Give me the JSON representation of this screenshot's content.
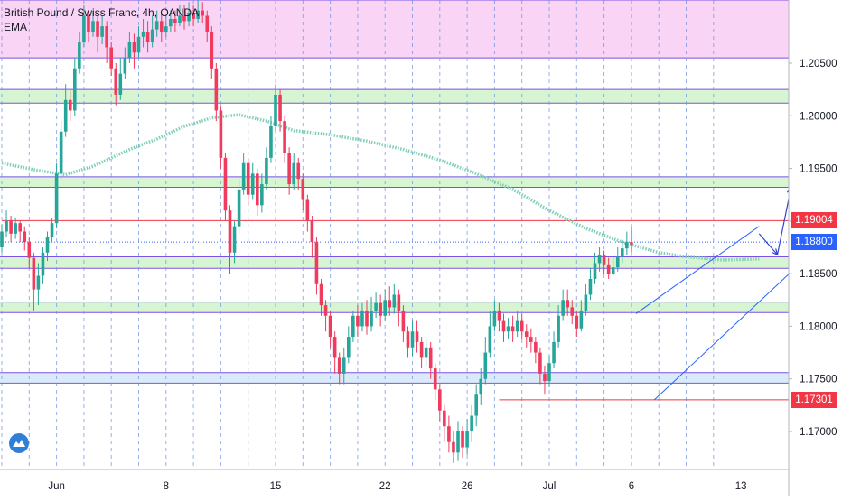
{
  "header": {
    "symbol_line": "British Pound / Swiss Franc, 4h, OANDA",
    "indicator": "EMA"
  },
  "price_badges": [
    {
      "label": "1.19004",
      "value": 1.19004,
      "color": "#f23645"
    },
    {
      "label": "1.18800",
      "value": 1.188,
      "color": "#2962ff"
    },
    {
      "label": "1.17301",
      "value": 1.17301,
      "color": "#f23645"
    }
  ],
  "colors": {
    "up_candle": "#26a69a",
    "down_candle": "#ef3b5e",
    "ema": "#7fcfb8",
    "support_zone": "#c9f2c4",
    "upper_zone": "#f7c6f2",
    "zone_border": "#7b52e8",
    "red_level": "#f23645",
    "channel": "#2962ff",
    "grid": "#6b8fe0"
  },
  "chart_data": {
    "type": "candlestick",
    "title": "British Pound / Swiss Franc, 4h, OANDA",
    "y_axis": {
      "range": [
        1.1664,
        1.211
      ],
      "ticks": [
        1.205,
        1.2,
        1.195,
        1.19,
        1.185,
        1.18,
        1.175,
        1.17
      ],
      "tick_labels": [
        "1.20500",
        "1.20000",
        "1.19500",
        "1.19000",
        "1.18500",
        "1.18000",
        "1.17500",
        "1.17000"
      ]
    },
    "x_axis": {
      "tick_labels": [
        "Jun",
        "8",
        "15",
        "22",
        "26",
        "Jul",
        "6",
        "13"
      ],
      "tick_candle_index": [
        12,
        36,
        60,
        84,
        102,
        120,
        138,
        162
      ]
    },
    "horizontal_zones": [
      {
        "from": 1.2055,
        "to": 1.211,
        "color": "pink"
      },
      {
        "from": 1.2012,
        "to": 1.2025,
        "color": "green"
      },
      {
        "from": 1.1932,
        "to": 1.1942,
        "color": "green"
      },
      {
        "from": 1.1855,
        "to": 1.1866,
        "color": "green"
      },
      {
        "from": 1.1813,
        "to": 1.1823,
        "color": "green"
      },
      {
        "from": 1.1746,
        "to": 1.1756,
        "color": "blue"
      }
    ],
    "red_levels": [
      {
        "value": 1.19004,
        "from_index": 0
      },
      {
        "value": 1.17301,
        "from_index": 109
      }
    ],
    "last_price_line": 1.188,
    "channel": {
      "lower": [
        [
          143,
          1.173
        ],
        [
          180,
          1.188
        ]
      ],
      "upper": [
        [
          139,
          1.1812
        ],
        [
          166,
          1.1895
        ]
      ]
    },
    "projection_arrows": [
      {
        "from": [
          166,
          1.1888
        ],
        "to": [
          170,
          1.1868
        ]
      },
      {
        "from": [
          170,
          1.1868
        ],
        "to": [
          173,
          1.1932
        ]
      }
    ],
    "ema": [
      [
        0,
        1.1955
      ],
      [
        8,
        1.1948
      ],
      [
        14,
        1.1944
      ],
      [
        20,
        1.1952
      ],
      [
        28,
        1.1968
      ],
      [
        34,
        1.1978
      ],
      [
        40,
        1.199
      ],
      [
        46,
        1.1998
      ],
      [
        52,
        1.2001
      ],
      [
        58,
        1.1995
      ],
      [
        64,
        1.1986
      ],
      [
        72,
        1.1982
      ],
      [
        80,
        1.1976
      ],
      [
        88,
        1.1968
      ],
      [
        96,
        1.1958
      ],
      [
        104,
        1.1945
      ],
      [
        112,
        1.193
      ],
      [
        120,
        1.191
      ],
      [
        128,
        1.1893
      ],
      [
        136,
        1.188
      ],
      [
        144,
        1.187
      ],
      [
        150,
        1.1866
      ],
      [
        158,
        1.1863
      ],
      [
        166,
        1.1864
      ]
    ],
    "candles": [
      [
        1.1875,
        1.189,
        1.1897,
        1.187
      ],
      [
        1.189,
        1.19,
        1.191,
        1.1885
      ],
      [
        1.19,
        1.1888,
        1.1905,
        1.188
      ],
      [
        1.1888,
        1.1898,
        1.1903,
        1.1883
      ],
      [
        1.1898,
        1.189,
        1.19,
        1.188
      ],
      [
        1.189,
        1.188,
        1.1895,
        1.1872
      ],
      [
        1.188,
        1.1865,
        1.1885,
        1.1855
      ],
      [
        1.1865,
        1.1835,
        1.187,
        1.1815
      ],
      [
        1.1835,
        1.1848,
        1.186,
        1.182
      ],
      [
        1.1848,
        1.187,
        1.1875,
        1.184
      ],
      [
        1.187,
        1.1885,
        1.189,
        1.1862
      ],
      [
        1.1885,
        1.1898,
        1.1903,
        1.188
      ],
      [
        1.1898,
        1.1945,
        1.1955,
        1.1893
      ],
      [
        1.1945,
        1.1985,
        1.1995,
        1.194
      ],
      [
        1.1985,
        1.2015,
        1.203,
        1.198
      ],
      [
        1.2015,
        1.2005,
        1.2025,
        1.1995
      ],
      [
        1.2005,
        1.2045,
        1.2055,
        1.2
      ],
      [
        1.2045,
        1.207,
        1.208,
        1.204
      ],
      [
        1.207,
        1.2095,
        1.2105,
        1.2065
      ],
      [
        1.2095,
        1.208,
        1.21,
        1.207
      ],
      [
        1.208,
        1.209,
        1.21,
        1.2075
      ],
      [
        1.209,
        1.2075,
        1.2095,
        1.206
      ],
      [
        1.2075,
        1.2085,
        1.2095,
        1.2068
      ],
      [
        1.2085,
        1.2065,
        1.209,
        1.205
      ],
      [
        1.2065,
        1.2045,
        1.207,
        1.2038
      ],
      [
        1.2045,
        1.202,
        1.205,
        1.201
      ],
      [
        1.202,
        1.204,
        1.2055,
        1.2015
      ],
      [
        1.204,
        1.2055,
        1.2065,
        1.2035
      ],
      [
        1.2055,
        1.207,
        1.208,
        1.205
      ],
      [
        1.207,
        1.206,
        1.2078,
        1.2045
      ],
      [
        1.206,
        1.2075,
        1.2085,
        1.2055
      ],
      [
        1.2075,
        1.208,
        1.2092,
        1.2065
      ],
      [
        1.208,
        1.207,
        1.209,
        1.206
      ],
      [
        1.207,
        1.2082,
        1.2095,
        1.2065
      ],
      [
        1.2082,
        1.209,
        1.21,
        1.2075
      ],
      [
        1.209,
        1.208,
        1.2098,
        1.207
      ],
      [
        1.208,
        1.2085,
        1.2095,
        1.2075
      ],
      [
        1.2085,
        1.2092,
        1.21,
        1.208
      ],
      [
        1.2092,
        1.2088,
        1.21,
        1.208
      ],
      [
        1.2088,
        1.2095,
        1.2105,
        1.2085
      ],
      [
        1.2095,
        1.209,
        1.2105,
        1.2082
      ],
      [
        1.209,
        1.2098,
        1.2108,
        1.2085
      ],
      [
        1.2098,
        1.2092,
        1.2105,
        1.2085
      ],
      [
        1.2092,
        1.21,
        1.211,
        1.2088
      ],
      [
        1.21,
        1.2095,
        1.2108,
        1.2088
      ],
      [
        1.2095,
        1.208,
        1.21,
        1.207
      ],
      [
        1.208,
        1.2045,
        1.2085,
        1.2035
      ],
      [
        1.2045,
        1.2005,
        1.205,
        1.1995
      ],
      [
        1.2005,
        1.196,
        1.201,
        1.195
      ],
      [
        1.196,
        1.191,
        1.1965,
        1.19
      ],
      [
        1.191,
        1.187,
        1.1915,
        1.185
      ],
      [
        1.187,
        1.1895,
        1.19,
        1.186
      ],
      [
        1.1895,
        1.193,
        1.194,
        1.1888
      ],
      [
        1.193,
        1.1955,
        1.1965,
        1.1925
      ],
      [
        1.1955,
        1.1925,
        1.196,
        1.1915
      ],
      [
        1.1925,
        1.1945,
        1.1955,
        1.192
      ],
      [
        1.1945,
        1.1915,
        1.195,
        1.1905
      ],
      [
        1.1915,
        1.1935,
        1.1945,
        1.1908
      ],
      [
        1.1935,
        1.196,
        1.197,
        1.193
      ],
      [
        1.196,
        1.199,
        1.2,
        1.1955
      ],
      [
        1.199,
        1.202,
        1.203,
        1.1985
      ],
      [
        1.202,
        1.1995,
        1.2025,
        1.1985
      ],
      [
        1.1995,
        1.1965,
        1.2,
        1.1955
      ],
      [
        1.1965,
        1.1935,
        1.197,
        1.1925
      ],
      [
        1.1935,
        1.1955,
        1.1965,
        1.193
      ],
      [
        1.1955,
        1.194,
        1.196,
        1.193
      ],
      [
        1.194,
        1.192,
        1.1945,
        1.191
      ],
      [
        1.192,
        1.19,
        1.1925,
        1.189
      ],
      [
        1.19,
        1.188,
        1.1905,
        1.1865
      ],
      [
        1.188,
        1.184,
        1.1885,
        1.183
      ],
      [
        1.184,
        1.182,
        1.1845,
        1.181
      ],
      [
        1.182,
        1.181,
        1.1825,
        1.1795
      ],
      [
        1.181,
        1.179,
        1.1815,
        1.178
      ],
      [
        1.179,
        1.177,
        1.1795,
        1.1755
      ],
      [
        1.177,
        1.1755,
        1.1775,
        1.1745
      ],
      [
        1.1755,
        1.177,
        1.178,
        1.1745
      ],
      [
        1.177,
        1.179,
        1.18,
        1.1765
      ],
      [
        1.179,
        1.181,
        1.1815,
        1.1785
      ],
      [
        1.181,
        1.18,
        1.182,
        1.179
      ],
      [
        1.18,
        1.1815,
        1.1822,
        1.1795
      ],
      [
        1.1815,
        1.18,
        1.1825,
        1.1792
      ],
      [
        1.18,
        1.1815,
        1.1828,
        1.1795
      ],
      [
        1.1815,
        1.1822,
        1.1832,
        1.1808
      ],
      [
        1.1822,
        1.181,
        1.183,
        1.18
      ],
      [
        1.181,
        1.1825,
        1.1835,
        1.1805
      ],
      [
        1.1825,
        1.1818,
        1.1838,
        1.181
      ],
      [
        1.1818,
        1.183,
        1.184,
        1.1812
      ],
      [
        1.183,
        1.1815,
        1.1835,
        1.18
      ],
      [
        1.1815,
        1.1795,
        1.182,
        1.1785
      ],
      [
        1.1795,
        1.178,
        1.18,
        1.177
      ],
      [
        1.178,
        1.1795,
        1.1805,
        1.1772
      ],
      [
        1.1795,
        1.1785,
        1.1805,
        1.1775
      ],
      [
        1.1785,
        1.177,
        1.179,
        1.176
      ],
      [
        1.177,
        1.178,
        1.179,
        1.1762
      ],
      [
        1.178,
        1.176,
        1.1785,
        1.175
      ],
      [
        1.176,
        1.174,
        1.1765,
        1.173
      ],
      [
        1.174,
        1.172,
        1.1745,
        1.171
      ],
      [
        1.172,
        1.1705,
        1.1725,
        1.169
      ],
      [
        1.1705,
        1.169,
        1.1715,
        1.168
      ],
      [
        1.169,
        1.168,
        1.17,
        1.167
      ],
      [
        1.168,
        1.17,
        1.171,
        1.1672
      ],
      [
        1.17,
        1.1685,
        1.1705,
        1.1675
      ],
      [
        1.1685,
        1.17,
        1.1712,
        1.1678
      ],
      [
        1.17,
        1.1715,
        1.1725,
        1.169
      ],
      [
        1.1715,
        1.1735,
        1.1745,
        1.1705
      ],
      [
        1.1735,
        1.175,
        1.176,
        1.1725
      ],
      [
        1.175,
        1.1775,
        1.179,
        1.1745
      ],
      [
        1.1775,
        1.18,
        1.1815,
        1.177
      ],
      [
        1.18,
        1.1815,
        1.1825,
        1.1795
      ],
      [
        1.1815,
        1.1805,
        1.1822,
        1.1795
      ],
      [
        1.1805,
        1.1795,
        1.1812,
        1.1785
      ],
      [
        1.1795,
        1.18,
        1.1808,
        1.1788
      ],
      [
        1.18,
        1.1795,
        1.181,
        1.1785
      ],
      [
        1.1795,
        1.1805,
        1.1815,
        1.179
      ],
      [
        1.1805,
        1.1795,
        1.1812,
        1.1788
      ],
      [
        1.1795,
        1.179,
        1.1802,
        1.178
      ],
      [
        1.179,
        1.1785,
        1.1798,
        1.1775
      ],
      [
        1.1785,
        1.1775,
        1.179,
        1.1765
      ],
      [
        1.1775,
        1.1755,
        1.178,
        1.1745
      ],
      [
        1.1755,
        1.1748,
        1.1762,
        1.1735
      ],
      [
        1.1748,
        1.1765,
        1.1772,
        1.1742
      ],
      [
        1.1765,
        1.1785,
        1.1795,
        1.176
      ],
      [
        1.1785,
        1.181,
        1.182,
        1.178
      ],
      [
        1.181,
        1.1825,
        1.1835,
        1.1805
      ],
      [
        1.1825,
        1.1818,
        1.1835,
        1.181
      ],
      [
        1.1818,
        1.181,
        1.1825,
        1.1802
      ],
      [
        1.181,
        1.1798,
        1.1815,
        1.179
      ],
      [
        1.1798,
        1.1815,
        1.1825,
        1.1795
      ],
      [
        1.1815,
        1.183,
        1.184,
        1.181
      ],
      [
        1.183,
        1.1845,
        1.1855,
        1.1825
      ],
      [
        1.1845,
        1.186,
        1.187,
        1.184
      ],
      [
        1.186,
        1.1868,
        1.1875,
        1.1852
      ],
      [
        1.1868,
        1.1858,
        1.1872,
        1.185
      ],
      [
        1.1858,
        1.185,
        1.1865,
        1.1845
      ],
      [
        1.185,
        1.1856,
        1.1866,
        1.1848
      ],
      [
        1.1856,
        1.1866,
        1.1875,
        1.1852
      ],
      [
        1.1866,
        1.1874,
        1.1882,
        1.186
      ],
      [
        1.1874,
        1.188,
        1.189,
        1.1868
      ],
      [
        1.188,
        1.1878,
        1.1895,
        1.187
      ]
    ]
  }
}
